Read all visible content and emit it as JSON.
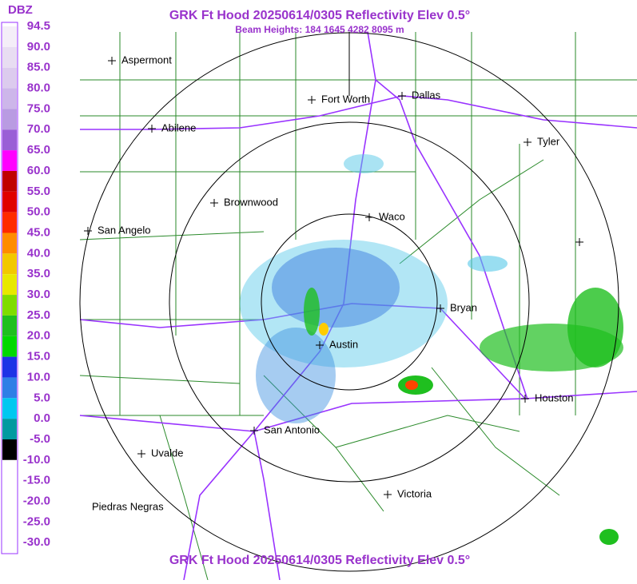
{
  "header": {
    "title": "GRK Ft Hood 20250614/0305 Reflectivity Elev 0.5°",
    "subtitle": "Beam Heights: 184 1645 4282 8095 m"
  },
  "legend": {
    "unit": "DBZ",
    "labels": [
      "94.5",
      "90.0",
      "85.0",
      "80.0",
      "75.0",
      "70.0",
      "65.0",
      "60.0",
      "55.0",
      "50.0",
      "45.0",
      "40.0",
      "35.0",
      "30.0",
      "25.0",
      "20.0",
      "15.0",
      "10.0",
      "5.0",
      "0.0",
      "-5.0",
      "-10.0",
      "-15.0",
      "-20.0",
      "-25.0",
      "-30.0"
    ]
  },
  "cities": [
    {
      "name": "Aspermont"
    },
    {
      "name": "Fort Worth"
    },
    {
      "name": "Dallas"
    },
    {
      "name": "Abilene"
    },
    {
      "name": "Tyler"
    },
    {
      "name": "Brownwood"
    },
    {
      "name": "Waco"
    },
    {
      "name": "San Angelo"
    },
    {
      "name": "Bryan"
    },
    {
      "name": "Austin"
    },
    {
      "name": "Houston"
    },
    {
      "name": "San Antonio"
    },
    {
      "name": "Uvalde"
    },
    {
      "name": "Victoria"
    },
    {
      "name": "Piedras Negras"
    }
  ],
  "footer": {
    "title": "GRK Ft Hood 20250614/0305 Reflectivity Elev 0.5°"
  }
}
